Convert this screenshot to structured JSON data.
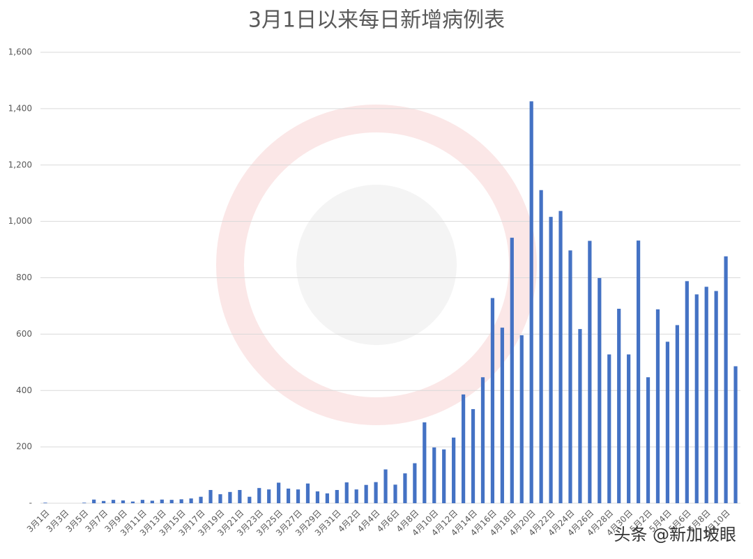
{
  "chart_data": {
    "type": "bar",
    "title": "3月1日以来每日新增病例表",
    "categories": [
      "3月1日",
      null,
      "3月3日",
      null,
      "3月5日",
      null,
      "3月7日",
      null,
      "3月9日",
      null,
      "3月11日",
      null,
      "3月13日",
      null,
      "3月15日",
      null,
      "3月17日",
      null,
      "3月19日",
      null,
      "3月21日",
      null,
      "3月23日",
      null,
      "3月25日",
      null,
      "3月27日",
      null,
      "3月29日",
      null,
      "3月31日",
      null,
      "4月2日",
      null,
      "4月4日",
      null,
      "4月6日",
      null,
      "4月8日",
      null,
      "4月10日",
      null,
      "4月12日",
      null,
      "4月14日",
      null,
      "4月16日",
      null,
      "4月18日",
      null,
      "4月20日",
      null,
      "4月22日",
      null,
      "4月24日",
      null,
      "4月26日",
      null,
      "4月28日",
      null,
      "4月30日",
      null,
      "5月2日",
      null,
      "5月4日",
      null,
      "5月6日",
      null,
      "5月8日",
      null,
      "5月10日",
      null
    ],
    "values": [
      2,
      0,
      0,
      0,
      2,
      13,
      8,
      12,
      10,
      6,
      12,
      9,
      13,
      12,
      14,
      17,
      23,
      47,
      32,
      40,
      47,
      23,
      54,
      49,
      73,
      52,
      49,
      70,
      42,
      35,
      47,
      74,
      49,
      65,
      75,
      120,
      66,
      106,
      142,
      287,
      198,
      191,
      233,
      386,
      334,
      447,
      728,
      623,
      942,
      596,
      1426,
      1111,
      1016,
      1037,
      897,
      618,
      931,
      799,
      528,
      690,
      528,
      932,
      447,
      688,
      573,
      632,
      788,
      741,
      768,
      753,
      876,
      486
    ],
    "color": "#4472c4",
    "ylim": [
      0,
      1600
    ],
    "yticks": [
      {
        "value": 0,
        "label": "-"
      },
      200,
      400,
      600,
      800,
      {
        "value": 1000,
        "label": "1,000"
      },
      {
        "value": 1200,
        "label": "1,200"
      },
      {
        "value": 1400,
        "label": "1,400"
      },
      {
        "value": 1600,
        "label": "1,600"
      }
    ],
    "grid": true,
    "watermark": "头条 @新加坡眼"
  }
}
